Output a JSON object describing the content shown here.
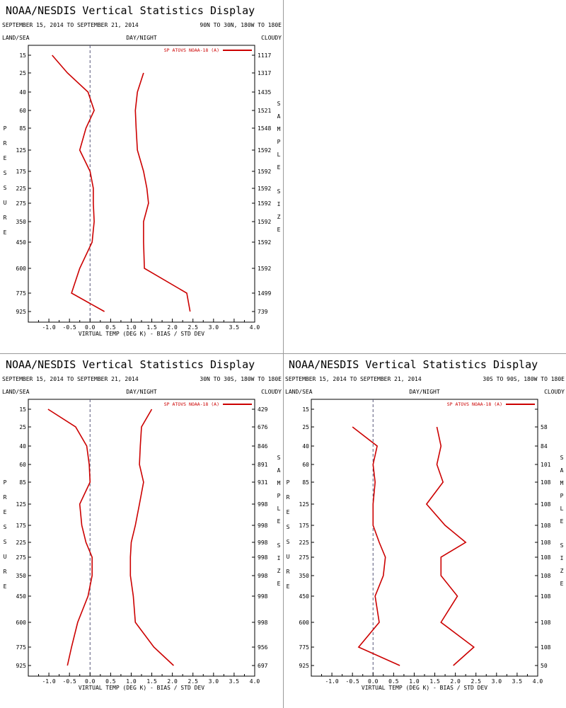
{
  "colors": {
    "series": "#cc0000",
    "axis": "#000000",
    "zero_line": "#555577",
    "separator": "#9a9a9a"
  },
  "labels": {
    "land_sea": "LAND/SEA",
    "day_night": "DAY/NIGHT",
    "cloudy": "CLOUDY",
    "pressure_letters": [
      "P",
      "R",
      "E",
      "S",
      "S",
      "U",
      "R",
      "E"
    ],
    "sample_letters": [
      "S",
      "A",
      "M",
      "P",
      "L",
      "E"
    ],
    "size_letters": [
      "S",
      "I",
      "Z",
      "E"
    ]
  },
  "chart_data": [
    {
      "type": "line",
      "title": "NOAA/NESDIS Vertical Statistics Display",
      "date_range": "SEPTEMBER 15, 2014 TO SEPTEMBER 21, 2014",
      "region": "90N TO 30N, 180W TO 180E",
      "xlabel": "VIRTUAL TEMP (DEG K) - BIAS / STD DEV",
      "xlim": [
        -1.5,
        4.0
      ],
      "x_ticks": [
        "-1.0",
        "-0.5",
        "0.0",
        "0.5",
        "1.0",
        "1.5",
        "2.0",
        "2.5",
        "3.0",
        "3.5",
        "4.0"
      ],
      "legend": "SP ATOVS NOAA-18 (A)",
      "pressure_levels": [
        "15",
        "25",
        "40",
        "60",
        "85",
        "125",
        "175",
        "225",
        "275",
        "350",
        "450",
        "600",
        "775",
        "925"
      ],
      "sample_size": [
        "1117",
        "1317",
        "1435",
        "1521",
        "1548",
        "1592",
        "1592",
        "1592",
        "1592",
        "1592",
        "1592",
        "1592",
        "1499",
        "739"
      ],
      "bias_levels": [
        15,
        25,
        40,
        60,
        85,
        125,
        175,
        225,
        275,
        350,
        450,
        600,
        775,
        925
      ],
      "bias": [
        -0.92,
        -0.55,
        -0.05,
        0.1,
        -0.1,
        -0.25,
        0.0,
        0.08,
        0.08,
        0.1,
        0.05,
        -0.25,
        -0.45,
        0.35
      ],
      "std_levels": [
        25,
        40,
        60,
        85,
        125,
        175,
        225,
        275,
        350,
        450,
        600,
        775,
        925
      ],
      "std_dev": [
        1.3,
        1.15,
        1.1,
        1.12,
        1.15,
        1.3,
        1.38,
        1.42,
        1.3,
        1.3,
        1.32,
        2.35,
        2.43
      ]
    },
    {
      "type": "line",
      "title": "NOAA/NESDIS Vertical Statistics Display",
      "date_range": "SEPTEMBER 15, 2014 TO SEPTEMBER 21, 2014",
      "region": "30N TO 30S, 180W TO 180E",
      "xlabel": "VIRTUAL TEMP (DEG K) - BIAS / STD DEV",
      "xlim": [
        -1.5,
        4.0
      ],
      "x_ticks": [
        "-1.0",
        "-0.5",
        "0.0",
        "0.5",
        "1.0",
        "1.5",
        "2.0",
        "2.5",
        "3.0",
        "3.5",
        "4.0"
      ],
      "legend": "SP ATOVS NOAA-18 (A)",
      "pressure_levels": [
        "15",
        "25",
        "40",
        "60",
        "85",
        "125",
        "175",
        "225",
        "275",
        "350",
        "450",
        "600",
        "775",
        "925"
      ],
      "sample_size": [
        "429",
        "676",
        "846",
        "891",
        "931",
        "998",
        "998",
        "998",
        "998",
        "998",
        "998",
        "998",
        "956",
        "697"
      ],
      "bias_levels": [
        15,
        25,
        40,
        60,
        85,
        125,
        175,
        225,
        275,
        350,
        450,
        600,
        775,
        925
      ],
      "bias": [
        -1.02,
        -0.35,
        -0.08,
        -0.02,
        0.0,
        -0.25,
        -0.2,
        -0.1,
        0.05,
        0.05,
        -0.05,
        -0.3,
        -0.45,
        -0.55
      ],
      "std_levels": [
        15,
        25,
        40,
        60,
        85,
        125,
        175,
        225,
        275,
        350,
        450,
        600,
        775,
        925
      ],
      "std_dev": [
        1.5,
        1.25,
        1.22,
        1.2,
        1.3,
        1.2,
        1.1,
        1.0,
        0.98,
        0.98,
        1.05,
        1.1,
        1.55,
        2.03
      ]
    },
    {
      "type": "line",
      "title": "NOAA/NESDIS Vertical Statistics Display",
      "date_range": "SEPTEMBER 15, 2014 TO SEPTEMBER 21, 2014",
      "region": "30S TO 90S, 180W TO 180E",
      "xlabel": "VIRTUAL TEMP (DEG K) - BIAS / STD DEV",
      "xlim": [
        -1.5,
        4.0
      ],
      "x_ticks": [
        "-1.0",
        "-0.5",
        "0.0",
        "0.5",
        "1.0",
        "1.5",
        "2.0",
        "2.5",
        "3.0",
        "3.5",
        "4.0"
      ],
      "legend": "SP ATOVS NOAA-18 (A)",
      "pressure_levels": [
        "15",
        "25",
        "40",
        "60",
        "85",
        "125",
        "175",
        "225",
        "275",
        "350",
        "450",
        "600",
        "775",
        "925"
      ],
      "sample_size": [
        "",
        "58",
        "84",
        "101",
        "108",
        "108",
        "108",
        "108",
        "108",
        "108",
        "108",
        "108",
        "108",
        "50"
      ],
      "bias_levels": [
        25,
        40,
        60,
        85,
        125,
        175,
        225,
        275,
        350,
        450,
        600,
        775,
        925
      ],
      "bias": [
        -0.5,
        0.1,
        0.0,
        0.05,
        0.0,
        0.0,
        0.15,
        0.3,
        0.25,
        0.05,
        0.15,
        -0.35,
        0.65
      ],
      "std_levels": [
        25,
        40,
        60,
        85,
        125,
        175,
        225,
        275,
        350,
        450,
        600,
        775,
        925
      ],
      "std_dev": [
        1.55,
        1.65,
        1.55,
        1.7,
        1.3,
        1.75,
        2.25,
        1.65,
        1.65,
        2.05,
        1.65,
        2.45,
        1.95
      ]
    }
  ]
}
